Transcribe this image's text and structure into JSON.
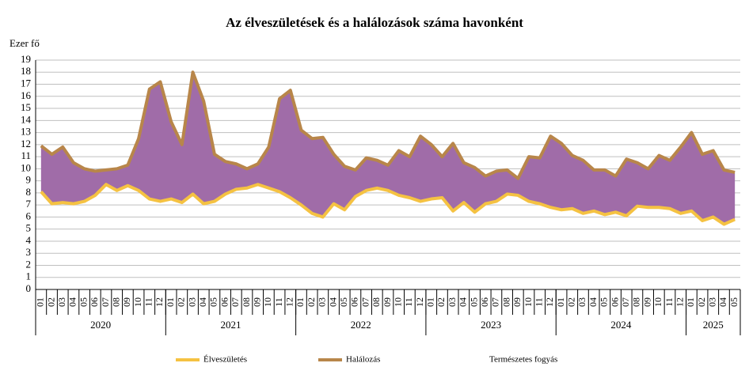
{
  "chart_data": {
    "type": "area-between",
    "title": "Az élveszületések és a halálozások száma havonként",
    "y_label": "Ezer fő",
    "categories": [
      "01",
      "02",
      "03",
      "04",
      "05",
      "06",
      "07",
      "08",
      "09",
      "10",
      "11",
      "12",
      "01",
      "02",
      "03",
      "04",
      "05",
      "06",
      "07",
      "08",
      "09",
      "10",
      "11",
      "12",
      "01",
      "02",
      "03",
      "04",
      "05",
      "06",
      "07",
      "08",
      "09",
      "10",
      "11",
      "12",
      "01",
      "02",
      "03",
      "04",
      "05",
      "06",
      "07",
      "08",
      "09",
      "10",
      "11",
      "12",
      "01",
      "02",
      "03",
      "04",
      "05",
      "06",
      "07",
      "08",
      "09",
      "10",
      "11",
      "12",
      "01",
      "02",
      "03",
      "04",
      "05"
    ],
    "groups": [
      {
        "label": "2020",
        "size": 12
      },
      {
        "label": "2021",
        "size": 12
      },
      {
        "label": "2022",
        "size": 12
      },
      {
        "label": "2023",
        "size": 12
      },
      {
        "label": "2024",
        "size": 12
      },
      {
        "label": "2025",
        "size": 5
      }
    ],
    "series": [
      {
        "name": "Élveszületés",
        "color": "#f5c242",
        "values": [
          8.1,
          7.1,
          7.2,
          7.1,
          7.3,
          7.8,
          8.7,
          8.2,
          8.6,
          8.2,
          7.5,
          7.3,
          7.5,
          7.2,
          7.9,
          7.1,
          7.3,
          7.9,
          8.3,
          8.4,
          8.7,
          8.4,
          8.1,
          7.6,
          7.0,
          6.3,
          6.0,
          7.1,
          6.6,
          7.7,
          8.2,
          8.4,
          8.2,
          7.8,
          7.6,
          7.3,
          7.5,
          7.6,
          6.5,
          7.2,
          6.4,
          7.1,
          7.3,
          7.9,
          7.8,
          7.3,
          7.1,
          6.8,
          6.6,
          6.7,
          6.3,
          6.5,
          6.2,
          6.4,
          6.1,
          6.9,
          6.8,
          6.8,
          6.7,
          6.3,
          6.5,
          5.7,
          6.0,
          5.4,
          5.8
        ]
      },
      {
        "name": "Halálozás",
        "color": "#b8864a",
        "values": [
          11.9,
          11.2,
          11.8,
          10.5,
          10.0,
          9.8,
          9.9,
          10.0,
          10.3,
          12.5,
          16.6,
          17.2,
          13.9,
          12.0,
          18.0,
          15.6,
          11.2,
          10.6,
          10.4,
          10.0,
          10.4,
          11.8,
          15.8,
          16.5,
          13.2,
          12.5,
          12.6,
          11.2,
          10.2,
          9.9,
          10.9,
          10.7,
          10.3,
          11.5,
          11.0,
          12.7,
          12.0,
          11.0,
          12.1,
          10.5,
          10.1,
          9.4,
          9.8,
          9.9,
          9.2,
          11.0,
          10.9,
          12.7,
          12.1,
          11.1,
          10.7,
          9.9,
          9.9,
          9.4,
          10.8,
          10.5,
          10.0,
          11.1,
          10.7,
          11.8,
          13.0,
          11.2,
          11.5,
          9.9,
          9.7
        ]
      }
    ],
    "area": {
      "name": "Természetes fogyás",
      "color": "#a06ca8"
    },
    "ylim": [
      0,
      19
    ],
    "yticks": [
      0,
      1,
      2,
      3,
      4,
      5,
      6,
      7,
      8,
      9,
      10,
      11,
      12,
      13,
      14,
      15,
      16,
      17,
      18,
      19
    ],
    "grid": true
  }
}
